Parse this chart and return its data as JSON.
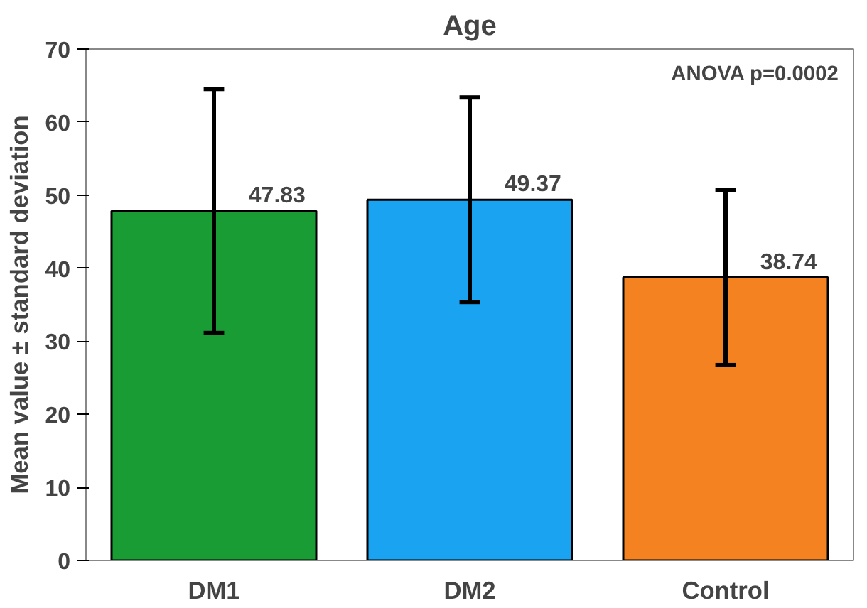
{
  "chart_data": {
    "type": "bar",
    "title": "Age",
    "ylabel": "Mean value ± standard deviation",
    "categories": [
      "DM1",
      "DM2",
      "Control"
    ],
    "values": [
      47.83,
      49.37,
      38.74
    ],
    "colors": [
      "#1a9c34",
      "#1aa3f0",
      "#f58220"
    ],
    "errors": [
      16.7,
      14.0,
      12.0
    ],
    "data_labels": true,
    "ylim": [
      0,
      70
    ],
    "yticks": [
      0,
      10,
      20,
      30,
      40,
      50,
      60,
      70
    ],
    "grid": false,
    "annotations": [
      "ANOVA  p=0.0002"
    ]
  }
}
